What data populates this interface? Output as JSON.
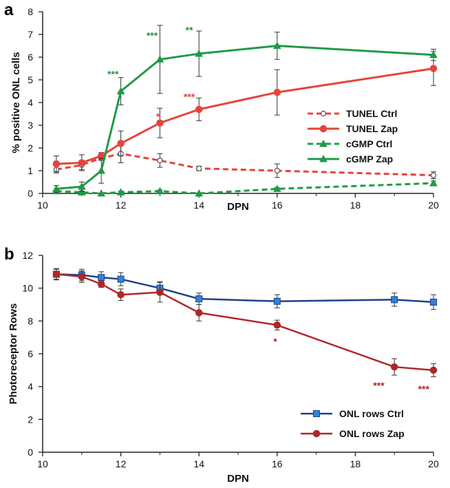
{
  "chart_data": [
    {
      "panel": "a",
      "type": "line",
      "xlabel": "DPN",
      "ylabel": "% positive ONL cells",
      "xlim": [
        10,
        20
      ],
      "ylim": [
        0,
        8
      ],
      "xticks": [
        10,
        12,
        14,
        16,
        18,
        20
      ],
      "yticks": [
        0,
        1,
        2,
        3,
        4,
        5,
        6,
        7,
        8
      ],
      "grid": false,
      "legend": "right",
      "series": [
        {
          "name": "TUNEL  Ctrl",
          "color": "#e8433a",
          "dashed": true,
          "marker": "circle-open",
          "x": [
            10.35,
            11,
            11.5,
            12,
            13,
            14,
            16,
            20
          ],
          "y": [
            1.05,
            1.25,
            1.55,
            1.75,
            1.45,
            1.1,
            1.0,
            0.8
          ],
          "err": [
            0.15,
            0.2,
            0.1,
            0.4,
            0.3,
            0.1,
            0.3,
            0.15
          ]
        },
        {
          "name": "TUNEL Zap",
          "color": "#e8433a",
          "dashed": false,
          "marker": "circle",
          "x": [
            10.35,
            11,
            11.5,
            12,
            13,
            14,
            16,
            20
          ],
          "y": [
            1.3,
            1.35,
            1.65,
            2.2,
            3.1,
            3.7,
            4.45,
            5.5
          ],
          "err": [
            0.35,
            0.35,
            0.15,
            0.55,
            0.65,
            0.5,
            1.0,
            0.75
          ]
        },
        {
          "name": "cGMP  Ctrl",
          "color": "#1f9a48",
          "dashed": true,
          "marker": "triangle",
          "x": [
            10.35,
            11,
            11.5,
            12,
            13,
            14,
            16,
            20
          ],
          "y": [
            0.1,
            0.05,
            0.0,
            0.05,
            0.1,
            0.0,
            0.2,
            0.45
          ],
          "err": [
            0.05,
            0.05,
            0.0,
            0.05,
            0.05,
            0.0,
            0.05,
            0.1
          ]
        },
        {
          "name": "cGMP Zap",
          "color": "#1f9a48",
          "dashed": false,
          "marker": "triangle",
          "x": [
            10.35,
            11,
            11.5,
            12,
            13,
            14,
            16,
            20
          ],
          "y": [
            0.2,
            0.3,
            1.0,
            4.5,
            5.9,
            6.15,
            6.5,
            6.1
          ],
          "err": [
            0.15,
            0.2,
            0.55,
            0.6,
            1.5,
            1.0,
            0.6,
            0.25
          ]
        }
      ],
      "annotations": [
        {
          "text": "***",
          "x": 11.8,
          "y": 5.1,
          "color": "#1f9a48"
        },
        {
          "text": "***",
          "x": 12.8,
          "y": 6.8,
          "color": "#1f9a48"
        },
        {
          "text": "**",
          "x": 13.75,
          "y": 7.05,
          "color": "#1f9a48"
        },
        {
          "text": "*",
          "x": 12.95,
          "y": 3.25,
          "color": "#e8433a"
        },
        {
          "text": "***",
          "x": 13.75,
          "y": 4.1,
          "color": "#e8433a"
        }
      ]
    },
    {
      "panel": "b",
      "type": "line",
      "xlabel": "DPN",
      "ylabel": "Photoreceptor  Rows",
      "xlim": [
        10,
        20
      ],
      "ylim": [
        0,
        12
      ],
      "xticks": [
        10,
        12,
        14,
        16,
        18,
        20
      ],
      "yticks": [
        0,
        2,
        4,
        6,
        8,
        10,
        12
      ],
      "grid": false,
      "legend": "bottom-right",
      "series": [
        {
          "name": "ONL rows Ctrl",
          "color": "#1e3f8c",
          "marker": "square",
          "markerColor": "#2f84d6",
          "x": [
            10.35,
            11,
            11.5,
            12,
            13,
            14,
            16,
            19,
            20
          ],
          "y": [
            10.85,
            10.8,
            10.65,
            10.55,
            10.0,
            9.35,
            9.2,
            9.3,
            9.15
          ],
          "err": [
            0.35,
            0.35,
            0.35,
            0.4,
            0.4,
            0.35,
            0.4,
            0.4,
            0.45
          ]
        },
        {
          "name": "ONL rows Zap",
          "color": "#b02727",
          "marker": "circle",
          "markerColor": "#b02727",
          "x": [
            10.35,
            11,
            11.5,
            12,
            13,
            14,
            16,
            19,
            20
          ],
          "y": [
            10.85,
            10.7,
            10.25,
            9.6,
            9.75,
            8.5,
            7.75,
            5.2,
            5.0
          ],
          "err": [
            0.3,
            0.35,
            0.2,
            0.35,
            0.6,
            0.5,
            0.3,
            0.5,
            0.4
          ]
        }
      ],
      "annotations": [
        {
          "text": "*",
          "x": 15.95,
          "y": 6.55,
          "color": "#b02727"
        },
        {
          "text": "***",
          "x": 18.6,
          "y": 3.85,
          "color": "#b02727"
        },
        {
          "text": "***",
          "x": 19.75,
          "y": 3.65,
          "color": "#b02727"
        }
      ]
    }
  ]
}
